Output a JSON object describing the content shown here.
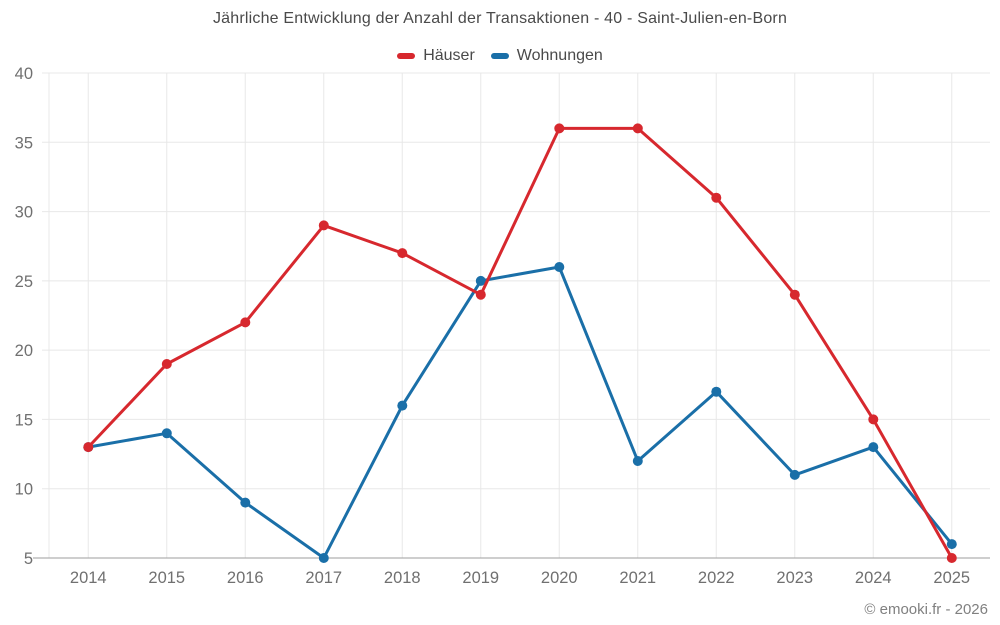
{
  "title": "Jährliche Entwicklung der Anzahl der Transaktionen - 40 - Saint-Julien-en-Born",
  "footer": "© emooki.fr - 2026",
  "colors": {
    "hauser_red": "#d7282e",
    "wohnungen_blue": "#1a6fa8",
    "grid": "#e8e8e8",
    "axis_line": "#9e9e9e",
    "tick_text": "#707070",
    "title_text": "#4a4a4a",
    "background": "#ffffff"
  },
  "chart_data": {
    "type": "line",
    "title": "Jährliche Entwicklung der Anzahl der Transaktionen - 40 - Saint-Julien-en-Born",
    "categories": [
      "2014",
      "2015",
      "2016",
      "2017",
      "2018",
      "2019",
      "2020",
      "2021",
      "2022",
      "2023",
      "2024",
      "2025"
    ],
    "series": [
      {
        "name": "Häuser",
        "color": "#d7282e",
        "values": [
          13,
          19,
          22,
          29,
          27,
          24,
          36,
          36,
          31,
          24,
          15,
          5
        ]
      },
      {
        "name": "Wohnungen",
        "color": "#1a6fa8",
        "values": [
          13,
          14,
          9,
          5,
          16,
          25,
          26,
          12,
          17,
          11,
          13,
          6
        ]
      }
    ],
    "xlabel": "",
    "ylabel": "",
    "ylim": [
      5,
      40
    ],
    "ytick_step": 5,
    "grid": true,
    "legend_position": "top",
    "marker": "circle",
    "marker_radius": 5,
    "line_width": 3
  }
}
